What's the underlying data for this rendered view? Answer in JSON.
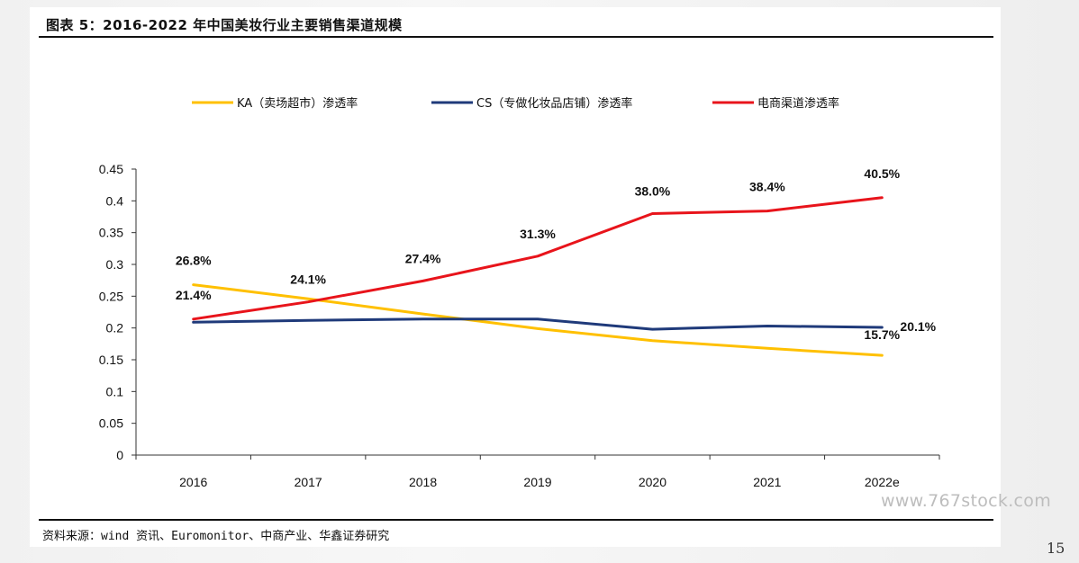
{
  "header": {
    "title": "图表 5：2016-2022 年中国美妆行业主要销售渠道规模"
  },
  "footer": {
    "source": "资料来源：wind 资讯、Euromonitor、中商产业、华鑫证券研究"
  },
  "watermark": "www.767stock.com",
  "page_number": "15",
  "chart_data": {
    "type": "line",
    "title": "",
    "xlabel": "",
    "ylabel": "",
    "categories": [
      "2016",
      "2017",
      "2018",
      "2019",
      "2020",
      "2021",
      "2022e"
    ],
    "ylim": [
      0,
      0.45
    ],
    "yticks": [
      "0",
      "0.05",
      "0.1",
      "0.15",
      "0.2",
      "0.25",
      "0.3",
      "0.35",
      "0.4",
      "0.45"
    ],
    "grid": false,
    "legend_position": "top",
    "series": [
      {
        "name": "KA（卖场超市）渗透率",
        "color": "#FFC000",
        "values": [
          0.268,
          0.246,
          0.222,
          0.199,
          0.18,
          0.168,
          0.157
        ],
        "labels": [
          "26.8%",
          "",
          "",
          "",
          "",
          "",
          "15.7%"
        ]
      },
      {
        "name": "CS（专做化妆品店铺）渗透率",
        "color": "#1F3A7A",
        "values": [
          0.209,
          0.212,
          0.214,
          0.214,
          0.198,
          0.203,
          0.201
        ],
        "labels": [
          "",
          "",
          "",
          "",
          "",
          "",
          "20.1%"
        ]
      },
      {
        "name": "电商渠道渗透率",
        "color": "#E8141B",
        "values": [
          0.214,
          0.241,
          0.274,
          0.313,
          0.38,
          0.384,
          0.405
        ],
        "labels": [
          "21.4%",
          "24.1%",
          "27.4%",
          "31.3%",
          "38.0%",
          "38.4%",
          "40.5%"
        ]
      }
    ]
  }
}
